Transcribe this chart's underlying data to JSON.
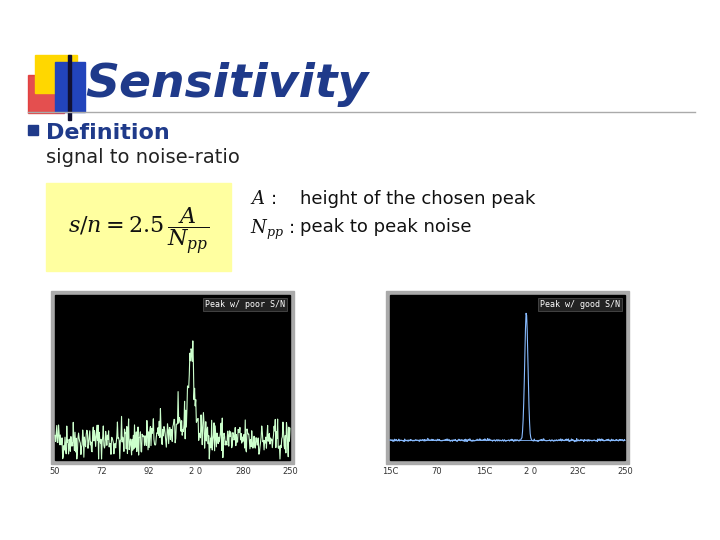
{
  "title": "Sensitivity",
  "title_color": "#1F3A8A",
  "bg_color": "#FFFFFF",
  "bullet_color": "#1F3A8A",
  "bullet_text": "Definition",
  "subtext": "signal to noise-ratio",
  "formula_bg": "#FFFFA0",
  "left_image_label": "Peak w/ poor S/N",
  "right_image_label": "Peak w/ good S/N",
  "deco_yellow": "#FFD700",
  "deco_red": "#E03030",
  "deco_blue": "#2244BB",
  "header_line_color": "#AAAAAA",
  "tick_labels_poor": [
    "50",
    "72",
    "92",
    "2 0",
    "280",
    "250"
  ],
  "tick_labels_good": [
    "15C",
    "70",
    "15C",
    "2 0",
    "23C",
    "250"
  ]
}
